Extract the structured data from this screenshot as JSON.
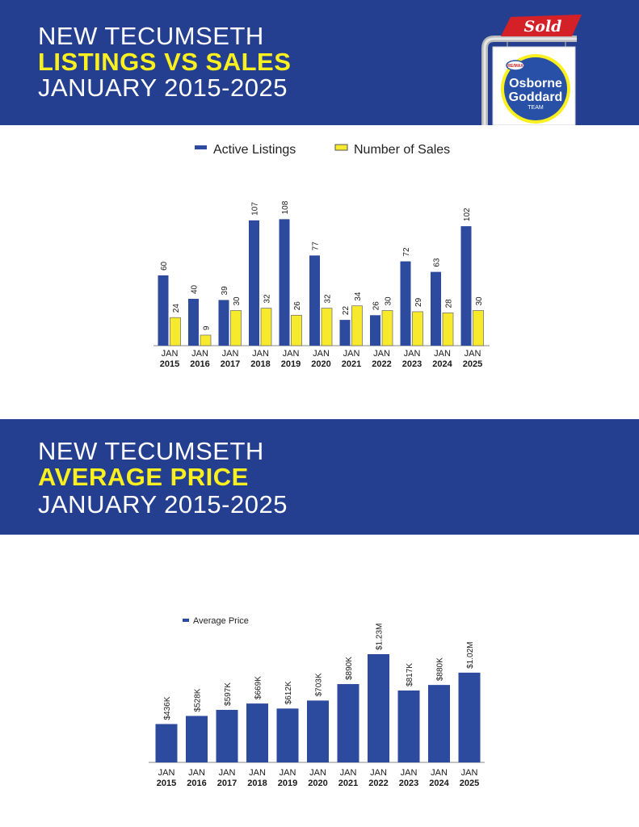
{
  "colors": {
    "banner": "#243f8f",
    "highlight": "#fbf01f",
    "listings_bar": "#2c4a9e",
    "sales_bar": "#f7ea2c",
    "sold_red": "#d42027"
  },
  "header1": {
    "line1": "NEW TECUMSETH",
    "line2": "LISTINGS VS SALES",
    "line3": "JANUARY 2015-2025"
  },
  "header2": {
    "line1": "NEW TECUMSETH",
    "line2": "AVERAGE PRICE",
    "line3": "JANUARY 2015-2025"
  },
  "logo": {
    "sold": "Sold",
    "brand_small": "RE/MAX",
    "line1": "Osborne",
    "line2": "Goddard",
    "line3": "TEAM"
  },
  "chart_data": [
    {
      "type": "bar",
      "title": "",
      "categories": [
        [
          "JAN",
          "2015"
        ],
        [
          "JAN",
          "2016"
        ],
        [
          "JAN",
          "2017"
        ],
        [
          "JAN",
          "2018"
        ],
        [
          "JAN",
          "2019"
        ],
        [
          "JAN",
          "2020"
        ],
        [
          "JAN",
          "2021"
        ],
        [
          "JAN",
          "2022"
        ],
        [
          "JAN",
          "2023"
        ],
        [
          "JAN",
          "2024"
        ],
        [
          "JAN",
          "2025"
        ]
      ],
      "series": [
        {
          "name": "Active Listings",
          "values": [
            60,
            40,
            39,
            107,
            108,
            77,
            22,
            26,
            72,
            63,
            102
          ]
        },
        {
          "name": "Number of Sales",
          "values": [
            24,
            9,
            30,
            32,
            26,
            32,
            34,
            30,
            29,
            28,
            30
          ]
        }
      ],
      "ylim": [
        0,
        120
      ],
      "legend": "top-center",
      "grid": false
    },
    {
      "type": "bar",
      "title": "",
      "categories": [
        [
          "JAN",
          "2015"
        ],
        [
          "JAN",
          "2016"
        ],
        [
          "JAN",
          "2017"
        ],
        [
          "JAN",
          "2018"
        ],
        [
          "JAN",
          "2019"
        ],
        [
          "JAN",
          "2020"
        ],
        [
          "JAN",
          "2021"
        ],
        [
          "JAN",
          "2022"
        ],
        [
          "JAN",
          "2023"
        ],
        [
          "JAN",
          "2024"
        ],
        [
          "JAN",
          "2025"
        ]
      ],
      "series": [
        {
          "name": "Average Price",
          "values": [
            436000,
            528000,
            597000,
            669000,
            612000,
            703000,
            890000,
            1230000,
            817000,
            880000,
            1020000
          ],
          "labels": [
            "$436K",
            "$528K",
            "$597K",
            "$669K",
            "$612K",
            "$703K",
            "$890K",
            "$1.23M",
            "$817K",
            "$880K",
            "$1.02M"
          ]
        }
      ],
      "ylim": [
        0,
        1230000
      ],
      "legend": "top-left",
      "grid": false
    }
  ]
}
